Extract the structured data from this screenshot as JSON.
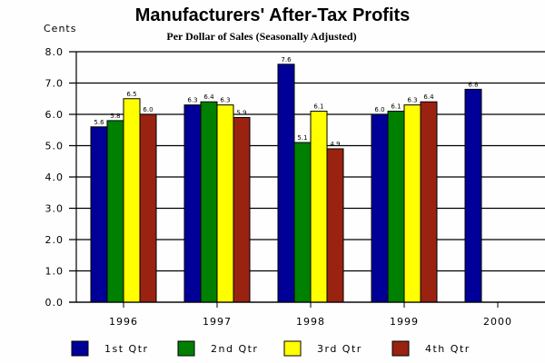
{
  "chart_data": {
    "type": "bar",
    "title": "Manufacturers' After-Tax Profits",
    "subtitle": "Per Dollar of Sales (Seasonally Adjusted)",
    "ylabel": "Cents",
    "xlabel": "",
    "ylim": [
      0,
      8
    ],
    "yticks": [
      "0.0",
      "1.0",
      "2.0",
      "3.0",
      "4.0",
      "5.0",
      "6.0",
      "7.0",
      "8.0"
    ],
    "grid": true,
    "legend_position": "bottom",
    "categories": [
      "1996",
      "1997",
      "1998",
      "1999",
      "2000"
    ],
    "series": [
      {
        "name": "1st Qtr",
        "color": "#000099",
        "values": [
          5.6,
          6.3,
          7.6,
          6.0,
          6.8
        ],
        "labels": [
          "5.6",
          "6.3",
          "7.6",
          "6.0",
          "6.8"
        ]
      },
      {
        "name": "2nd Qtr",
        "color": "#008000",
        "values": [
          5.8,
          6.4,
          5.1,
          6.1,
          null
        ],
        "labels": [
          "5.8",
          "6.4",
          "5.1",
          "6.1",
          null
        ]
      },
      {
        "name": "3rd Qtr",
        "color": "#ffff00",
        "values": [
          6.5,
          6.3,
          6.1,
          6.3,
          null
        ],
        "labels": [
          "6.5",
          "6.3",
          "6.1",
          "6.3",
          null
        ]
      },
      {
        "name": "4th Qtr",
        "color": "#992211",
        "values": [
          6.0,
          5.9,
          4.9,
          6.4,
          null
        ],
        "labels": [
          "6.0",
          "5.9",
          "4.9",
          "6.4",
          null
        ]
      }
    ]
  }
}
